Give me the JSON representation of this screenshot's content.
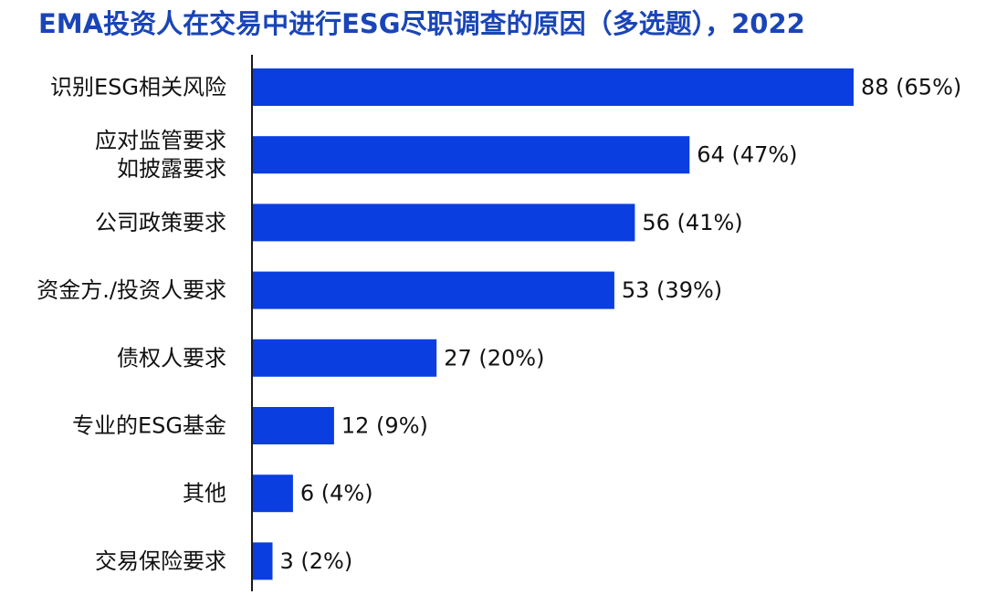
{
  "colors": {
    "bar": "#0b3ee0",
    "title": "#1a45b8",
    "axis": "#1a1a1a",
    "text": "#111111"
  },
  "chart_data": {
    "type": "bar",
    "orientation": "horizontal",
    "title": "EMA投资人在交易中进行ESG尽职调查的原因（多选题），2022",
    "xlabel": "",
    "ylabel": "",
    "xlim": [
      0,
      88
    ],
    "grid": false,
    "legend": "none",
    "categories": [
      [
        "识别ESG相关风险"
      ],
      [
        "应对监管要求",
        "如披露要求"
      ],
      [
        "公司政策要求"
      ],
      [
        "资金方./投资人要求"
      ],
      [
        "债权人要求"
      ],
      [
        "专业的ESG基金"
      ],
      [
        "其他"
      ],
      [
        "交易保险要求"
      ]
    ],
    "values": [
      88,
      64,
      56,
      53,
      27,
      12,
      6,
      3
    ],
    "data_labels": [
      "88 (65%)",
      "64 (47%)",
      "56 (41%)",
      "53 (39%)",
      "27 (20%)",
      "12 (9%)",
      "6 (4%)",
      "3 (2%)"
    ]
  }
}
